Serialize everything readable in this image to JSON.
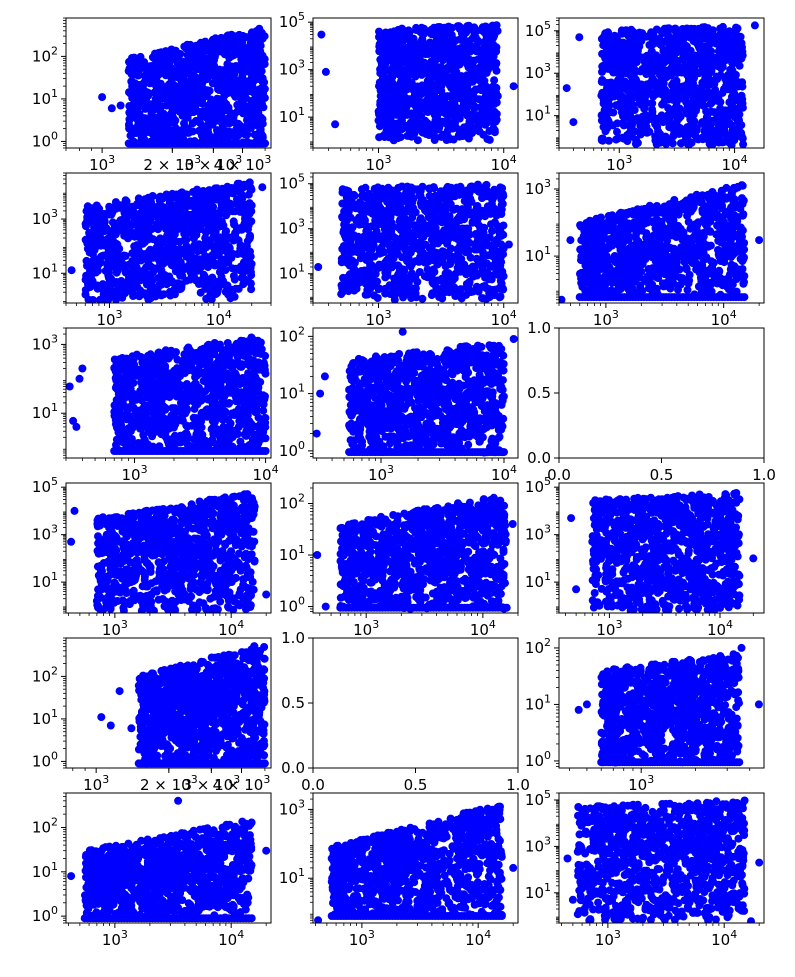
{
  "figure": {
    "background": "#ffffff",
    "point_color": "#0000ff",
    "rows": 6,
    "cols": 3
  },
  "chart_data": [
    {
      "panel": "r1c1",
      "type": "scatter",
      "xscale": "log",
      "yscale": "log",
      "x_ticks": [
        {
          "label": "10",
          "exp": "3",
          "v": 1000
        },
        {
          "label": "2 × 10",
          "exp": "3",
          "v": 2000
        },
        {
          "label": "3 × 10",
          "exp": "3",
          "v": 3000
        },
        {
          "label": "4 × 10",
          "exp": "3",
          "v": 4000
        }
      ],
      "y_ticks": [
        {
          "label": "10",
          "exp": "0",
          "v": 1
        },
        {
          "label": "10",
          "exp": "1",
          "v": 10
        },
        {
          "label": "10",
          "exp": "2",
          "v": 100
        }
      ],
      "xlim": [
        700,
        5300
      ],
      "ylim": [
        0.7,
        800
      ],
      "cloud": {
        "xmin": 1300,
        "xmax": 5000,
        "ymin": 0.9,
        "ymax_low": 90,
        "ymax_high": 500,
        "baseline": 0.9
      },
      "outliers": [
        [
          1000,
          11
        ],
        [
          1100,
          6
        ],
        [
          1200,
          7
        ],
        [
          1300,
          45
        ],
        [
          1600,
          6
        ]
      ]
    },
    {
      "panel": "r1c2",
      "type": "scatter",
      "xscale": "log",
      "yscale": "log",
      "x_ticks": [
        {
          "label": "10",
          "exp": "3",
          "v": 1000
        },
        {
          "label": "10",
          "exp": "4",
          "v": 10000
        }
      ],
      "y_ticks": [
        {
          "label": "10",
          "exp": "1",
          "v": 10
        },
        {
          "label": "10",
          "exp": "3",
          "v": 1000
        },
        {
          "label": "10",
          "exp": "5",
          "v": 100000
        }
      ],
      "xlim": [
        300,
        13000
      ],
      "ylim": [
        0.5,
        150000
      ],
      "cloud": {
        "xmin": 1000,
        "xmax": 9000,
        "ymin": 1,
        "ymax_low": 50000,
        "ymax_high": 80000,
        "baseline": null
      },
      "outliers": [
        [
          350,
          30000
        ],
        [
          380,
          800
        ],
        [
          450,
          5
        ],
        [
          12000,
          200
        ]
      ]
    },
    {
      "panel": "r1c3",
      "type": "scatter",
      "xscale": "log",
      "yscale": "log",
      "x_ticks": [
        {
          "label": "10",
          "exp": "3",
          "v": 1000
        },
        {
          "label": "10",
          "exp": "4",
          "v": 10000
        }
      ],
      "y_ticks": [
        {
          "label": "10",
          "exp": "1",
          "v": 10
        },
        {
          "label": "10",
          "exp": "3",
          "v": 1000
        },
        {
          "label": "10",
          "exp": "5",
          "v": 100000
        }
      ],
      "xlim": [
        300,
        18000
      ],
      "ylim": [
        0.3,
        400000
      ],
      "cloud": {
        "xmin": 700,
        "xmax": 12000,
        "ymin": 0.4,
        "ymax_low": 100000,
        "ymax_high": 180000,
        "baseline": null
      },
      "outliers": [
        [
          350,
          200
        ],
        [
          400,
          5
        ],
        [
          450,
          50000
        ],
        [
          15000,
          180000
        ]
      ]
    },
    {
      "panel": "r2c1",
      "type": "scatter",
      "xscale": "log",
      "yscale": "log",
      "x_ticks": [
        {
          "label": "10",
          "exp": "3",
          "v": 1000
        },
        {
          "label": "10",
          "exp": "4",
          "v": 10000
        }
      ],
      "y_ticks": [
        {
          "label": "10",
          "exp": "1",
          "v": 10
        },
        {
          "label": "10",
          "exp": "3",
          "v": 1000
        }
      ],
      "xlim": [
        400,
        30000
      ],
      "ylim": [
        0.8,
        50000
      ],
      "cloud": {
        "xmin": 600,
        "xmax": 20000,
        "ymin": 1,
        "ymax_low": 3000,
        "ymax_high": 25000,
        "baseline": null
      },
      "outliers": [
        [
          450,
          13
        ],
        [
          25000,
          15000
        ]
      ]
    },
    {
      "panel": "r2c2",
      "type": "scatter",
      "xscale": "log",
      "yscale": "log",
      "x_ticks": [
        {
          "label": "10",
          "exp": "3",
          "v": 1000
        },
        {
          "label": "10",
          "exp": "4",
          "v": 10000
        }
      ],
      "y_ticks": [
        {
          "label": "10",
          "exp": "1",
          "v": 10
        },
        {
          "label": "10",
          "exp": "3",
          "v": 1000
        },
        {
          "label": "10",
          "exp": "5",
          "v": 100000
        }
      ],
      "xlim": [
        300,
        13000
      ],
      "ylim": [
        0.5,
        300000
      ],
      "cloud": {
        "xmin": 500,
        "xmax": 10000,
        "ymin": 0.7,
        "ymax_low": 60000,
        "ymax_high": 120000,
        "baseline": null
      },
      "outliers": [
        [
          330,
          20
        ],
        [
          11000,
          200
        ]
      ]
    },
    {
      "panel": "r2c3",
      "type": "scatter",
      "xscale": "log",
      "yscale": "log",
      "x_ticks": [
        {
          "label": "10",
          "exp": "3",
          "v": 1000
        },
        {
          "label": "10",
          "exp": "4",
          "v": 10000
        }
      ],
      "y_ticks": [
        {
          "label": "10",
          "exp": "1",
          "v": 10
        },
        {
          "label": "10",
          "exp": "3",
          "v": 1000
        }
      ],
      "xlim": [
        400,
        22000
      ],
      "ylim": [
        0.4,
        3000
      ],
      "cloud": {
        "xmin": 600,
        "xmax": 15000,
        "ymin": 0.7,
        "ymax_low": 100,
        "ymax_high": 1500,
        "baseline": 0.6
      },
      "outliers": [
        [
          420,
          0.5
        ],
        [
          500,
          30
        ],
        [
          20000,
          30
        ]
      ]
    },
    {
      "panel": "r3c1",
      "type": "scatter",
      "xscale": "log",
      "yscale": "log",
      "x_ticks": [
        {
          "label": "10",
          "exp": "3",
          "v": 1000
        },
        {
          "label": "10",
          "exp": "4",
          "v": 10000
        }
      ],
      "y_ticks": [
        {
          "label": "10",
          "exp": "1",
          "v": 10
        },
        {
          "label": "10",
          "exp": "3",
          "v": 1000
        }
      ],
      "xlim": [
        300,
        11000
      ],
      "ylim": [
        0.5,
        3000
      ],
      "cloud": {
        "xmin": 700,
        "xmax": 10000,
        "ymin": 0.8,
        "ymax_low": 400,
        "ymax_high": 2000,
        "baseline": 0.8
      },
      "outliers": [
        [
          320,
          60
        ],
        [
          340,
          6
        ],
        [
          360,
          4
        ],
        [
          380,
          100
        ],
        [
          400,
          200
        ]
      ]
    },
    {
      "panel": "r3c2",
      "type": "scatter",
      "xscale": "log",
      "yscale": "log",
      "x_ticks": [
        {
          "label": "10",
          "exp": "3",
          "v": 1000
        },
        {
          "label": "10",
          "exp": "4",
          "v": 10000
        }
      ],
      "y_ticks": [
        {
          "label": "10",
          "exp": "0",
          "v": 1
        },
        {
          "label": "10",
          "exp": "1",
          "v": 10
        },
        {
          "label": "10",
          "exp": "2",
          "v": 100
        }
      ],
      "xlim": [
        280,
        13000
      ],
      "ylim": [
        0.75,
        140
      ],
      "cloud": {
        "xmin": 550,
        "xmax": 10000,
        "ymin": 0.9,
        "ymax_low": 40,
        "ymax_high": 80,
        "baseline": 0.95
      },
      "outliers": [
        [
          300,
          2
        ],
        [
          320,
          10
        ],
        [
          350,
          20
        ],
        [
          1500,
          120
        ],
        [
          12000,
          90
        ]
      ]
    },
    {
      "panel": "r3c3",
      "type": "empty",
      "xscale": "linear",
      "yscale": "linear",
      "x_ticks": [
        {
          "label": "0.0",
          "v": 0
        },
        {
          "label": "0.5",
          "v": 0.5
        },
        {
          "label": "1.0",
          "v": 1
        }
      ],
      "y_ticks": [
        {
          "label": "0.0",
          "v": 0
        },
        {
          "label": "0.5",
          "v": 0.5
        },
        {
          "label": "1.0",
          "v": 1
        }
      ],
      "xlim": [
        0,
        1
      ],
      "ylim": [
        0,
        1
      ]
    },
    {
      "panel": "r4c1",
      "type": "scatter",
      "xscale": "log",
      "yscale": "log",
      "x_ticks": [
        {
          "label": "10",
          "exp": "3",
          "v": 1000
        },
        {
          "label": "10",
          "exp": "4",
          "v": 10000
        }
      ],
      "y_ticks": [
        {
          "label": "10",
          "exp": "1",
          "v": 10
        },
        {
          "label": "10",
          "exp": "3",
          "v": 1000
        },
        {
          "label": "10",
          "exp": "5",
          "v": 100000
        }
      ],
      "xlim": [
        380,
        22000
      ],
      "ylim": [
        0.5,
        150000
      ],
      "cloud": {
        "xmin": 700,
        "xmax": 16000,
        "ymin": 0.6,
        "ymax_low": 5000,
        "ymax_high": 60000,
        "baseline": null
      },
      "outliers": [
        [
          420,
          500
        ],
        [
          450,
          10000
        ],
        [
          20000,
          3
        ]
      ]
    },
    {
      "panel": "r4c2",
      "type": "scatter",
      "xscale": "log",
      "yscale": "log",
      "x_ticks": [
        {
          "label": "10",
          "exp": "3",
          "v": 1000
        },
        {
          "label": "10",
          "exp": "4",
          "v": 10000
        }
      ],
      "y_ticks": [
        {
          "label": "10",
          "exp": "0",
          "v": 1
        },
        {
          "label": "10",
          "exp": "1",
          "v": 10
        },
        {
          "label": "10",
          "exp": "2",
          "v": 100
        }
      ],
      "xlim": [
        350,
        20000
      ],
      "ylim": [
        0.75,
        250
      ],
      "cloud": {
        "xmin": 600,
        "xmax": 16000,
        "ymin": 0.9,
        "ymax_low": 40,
        "ymax_high": 150,
        "baseline": 0.95
      },
      "outliers": [
        [
          380,
          10
        ],
        [
          450,
          1
        ],
        [
          18000,
          40
        ]
      ]
    },
    {
      "panel": "r4c3",
      "type": "scatter",
      "xscale": "log",
      "yscale": "log",
      "x_ticks": [
        {
          "label": "10",
          "exp": "3",
          "v": 1000
        },
        {
          "label": "10",
          "exp": "4",
          "v": 10000
        }
      ],
      "y_ticks": [
        {
          "label": "10",
          "exp": "1",
          "v": 10
        },
        {
          "label": "10",
          "exp": "3",
          "v": 1000
        },
        {
          "label": "10",
          "exp": "5",
          "v": 100000
        }
      ],
      "xlim": [
        350,
        25000
      ],
      "ylim": [
        0.5,
        150000
      ],
      "cloud": {
        "xmin": 700,
        "xmax": 15000,
        "ymin": 0.6,
        "ymax_low": 30000,
        "ymax_high": 60000,
        "baseline": null
      },
      "outliers": [
        [
          450,
          5000
        ],
        [
          500,
          5
        ],
        [
          20000,
          100
        ]
      ]
    },
    {
      "panel": "r5c1",
      "type": "scatter",
      "xscale": "log",
      "yscale": "log",
      "x_ticks": [
        {
          "label": "10",
          "exp": "3",
          "v": 1000
        },
        {
          "label": "2 × 10",
          "exp": "3",
          "v": 2000
        },
        {
          "label": "3 × 10",
          "exp": "3",
          "v": 3000
        },
        {
          "label": "4 × 10",
          "exp": "3",
          "v": 4000
        }
      ],
      "y_ticks": [
        {
          "label": "10",
          "exp": "0",
          "v": 1
        },
        {
          "label": "10",
          "exp": "1",
          "v": 10
        },
        {
          "label": "10",
          "exp": "2",
          "v": 100
        }
      ],
      "xlim": [
        750,
        5300
      ],
      "ylim": [
        0.7,
        800
      ],
      "cloud": {
        "xmin": 1500,
        "xmax": 5000,
        "ymin": 0.9,
        "ymax_low": 100,
        "ymax_high": 600,
        "baseline": 0.9
      },
      "outliers": [
        [
          1050,
          11
        ],
        [
          1150,
          7
        ],
        [
          1250,
          45
        ],
        [
          1400,
          6
        ]
      ]
    },
    {
      "panel": "r5c2",
      "type": "empty",
      "xscale": "linear",
      "yscale": "linear",
      "x_ticks": [
        {
          "label": "0.0",
          "v": 0
        },
        {
          "label": "0.5",
          "v": 0.5
        },
        {
          "label": "1.0",
          "v": 1
        }
      ],
      "y_ticks": [
        {
          "label": "0.0",
          "v": 0
        },
        {
          "label": "0.5",
          "v": 0.5
        },
        {
          "label": "1.0",
          "v": 1
        }
      ],
      "xlim": [
        0,
        1
      ],
      "ylim": [
        0,
        1
      ]
    },
    {
      "panel": "r5c3",
      "type": "scatter",
      "xscale": "log",
      "yscale": "log",
      "x_ticks": [
        {
          "label": "10",
          "exp": "3",
          "v": 1000
        }
      ],
      "y_ticks": [
        {
          "label": "10",
          "exp": "0",
          "v": 1
        },
        {
          "label": "10",
          "exp": "1",
          "v": 10
        },
        {
          "label": "10",
          "exp": "2",
          "v": 100
        }
      ],
      "xlim": [
        350,
        4800
      ],
      "ylim": [
        0.75,
        150
      ],
      "cloud": {
        "xmin": 600,
        "xmax": 3500,
        "ymin": 0.9,
        "ymax_low": 40,
        "ymax_high": 80,
        "baseline": 0.95
      },
      "outliers": [
        [
          450,
          8
        ],
        [
          500,
          10
        ],
        [
          3600,
          100
        ],
        [
          4500,
          10
        ]
      ]
    },
    {
      "panel": "r6c1",
      "type": "scatter",
      "xscale": "log",
      "yscale": "log",
      "x_ticks": [
        {
          "label": "10",
          "exp": "3",
          "v": 1000
        },
        {
          "label": "10",
          "exp": "4",
          "v": 10000
        }
      ],
      "y_ticks": [
        {
          "label": "10",
          "exp": "0",
          "v": 1
        },
        {
          "label": "10",
          "exp": "1",
          "v": 10
        },
        {
          "label": "10",
          "exp": "2",
          "v": 100
        }
      ],
      "xlim": [
        380,
        22000
      ],
      "ylim": [
        0.7,
        600
      ],
      "cloud": {
        "xmin": 550,
        "xmax": 15000,
        "ymin": 0.9,
        "ymax_low": 30,
        "ymax_high": 150,
        "baseline": 0.9
      },
      "outliers": [
        [
          420,
          8
        ],
        [
          3500,
          400
        ],
        [
          20000,
          30
        ]
      ]
    },
    {
      "panel": "r6c2",
      "type": "scatter",
      "xscale": "log",
      "yscale": "log",
      "x_ticks": [
        {
          "label": "10",
          "exp": "3",
          "v": 1000
        },
        {
          "label": "10",
          "exp": "4",
          "v": 10000
        }
      ],
      "y_ticks": [
        {
          "label": "10",
          "exp": "1",
          "v": 10
        },
        {
          "label": "10",
          "exp": "3",
          "v": 1000
        }
      ],
      "xlim": [
        380,
        22000
      ],
      "ylim": [
        0.5,
        3000
      ],
      "cloud": {
        "xmin": 550,
        "xmax": 16000,
        "ymin": 0.8,
        "ymax_low": 80,
        "ymax_high": 1500,
        "baseline": 0.8
      },
      "outliers": [
        [
          420,
          0.6
        ],
        [
          20000,
          20
        ]
      ]
    },
    {
      "panel": "r6c3",
      "type": "scatter",
      "xscale": "log",
      "yscale": "log",
      "x_ticks": [
        {
          "label": "10",
          "exp": "3",
          "v": 1000
        },
        {
          "label": "10",
          "exp": "4",
          "v": 10000
        }
      ],
      "y_ticks": [
        {
          "label": "10",
          "exp": "1",
          "v": 10
        },
        {
          "label": "10",
          "exp": "3",
          "v": 1000
        },
        {
          "label": "10",
          "exp": "5",
          "v": 100000
        }
      ],
      "xlim": [
        380,
        22000
      ],
      "ylim": [
        0.5,
        200000
      ],
      "cloud": {
        "xmin": 550,
        "xmax": 15000,
        "ymin": 0.6,
        "ymax_low": 50000,
        "ymax_high": 100000,
        "baseline": null
      },
      "outliers": [
        [
          450,
          300
        ],
        [
          500,
          5
        ],
        [
          17000,
          0.6
        ],
        [
          20000,
          200
        ]
      ]
    }
  ]
}
